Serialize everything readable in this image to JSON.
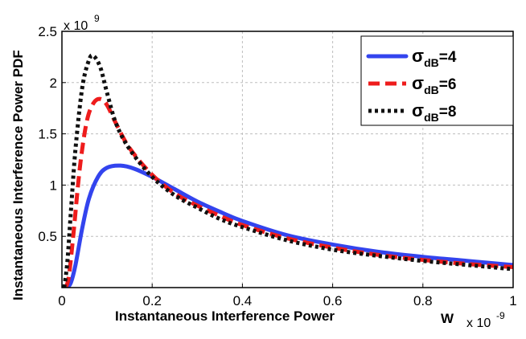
{
  "chart_data": {
    "type": "line",
    "title": "",
    "xlabel": "Instantaneous Interference Power",
    "xunit": "W",
    "ylabel": "Instantaneous Interference Power PDF",
    "x_multiplier": "x 10",
    "x_multiplier_exp": "-9",
    "y_multiplier": "x 10",
    "y_multiplier_exp": "9",
    "xlim": [
      0,
      1
    ],
    "ylim": [
      0,
      2.5
    ],
    "xticks": [
      0,
      0.2,
      0.4,
      0.6,
      0.8,
      1
    ],
    "xtick_labels": [
      "0",
      "0.2",
      "0.4",
      "0.6",
      "0.8",
      "1"
    ],
    "yticks": [
      0.5,
      1,
      1.5,
      2,
      2.5
    ],
    "ytick_labels": [
      "0.5",
      "1",
      "1.5",
      "2",
      "2.5"
    ],
    "grid": true,
    "legend_position": "top-right",
    "series": [
      {
        "name": "σdB=4",
        "legend_symbol": "σ",
        "legend_sub": "dB",
        "legend_value": "=4",
        "color": "#3344ee",
        "dash": "solid",
        "x": [
          0.012,
          0.02,
          0.03,
          0.045,
          0.06,
          0.08,
          0.1,
          0.13,
          0.16,
          0.2,
          0.25,
          0.3,
          0.35,
          0.4,
          0.5,
          0.6,
          0.7,
          0.8,
          0.9,
          1.0
        ],
        "y": [
          0.0,
          0.05,
          0.22,
          0.58,
          0.87,
          1.08,
          1.17,
          1.19,
          1.16,
          1.08,
          0.96,
          0.84,
          0.74,
          0.65,
          0.51,
          0.42,
          0.35,
          0.3,
          0.26,
          0.22
        ]
      },
      {
        "name": "σdB=6",
        "legend_symbol": "σ",
        "legend_sub": "dB",
        "legend_value": "=6",
        "color": "#ee1c1c",
        "dash": "dashed",
        "x": [
          0.008,
          0.015,
          0.025,
          0.04,
          0.055,
          0.07,
          0.085,
          0.1,
          0.12,
          0.15,
          0.2,
          0.25,
          0.3,
          0.35,
          0.4,
          0.5,
          0.6,
          0.7,
          0.8,
          0.9,
          1.0
        ],
        "y": [
          0.0,
          0.1,
          0.5,
          1.18,
          1.62,
          1.8,
          1.84,
          1.78,
          1.6,
          1.36,
          1.1,
          0.92,
          0.8,
          0.7,
          0.61,
          0.48,
          0.39,
          0.32,
          0.27,
          0.23,
          0.2
        ]
      },
      {
        "name": "σdB=8",
        "legend_symbol": "σ",
        "legend_sub": "dB",
        "legend_value": "=8",
        "color": "#111111",
        "dash": "dotted",
        "x": [
          0.005,
          0.012,
          0.02,
          0.03,
          0.045,
          0.06,
          0.07,
          0.085,
          0.1,
          0.12,
          0.15,
          0.2,
          0.25,
          0.3,
          0.35,
          0.4,
          0.5,
          0.6,
          0.7,
          0.8,
          0.9,
          1.0
        ],
        "y": [
          0.0,
          0.25,
          0.75,
          1.35,
          1.95,
          2.22,
          2.26,
          2.15,
          1.9,
          1.6,
          1.35,
          1.08,
          0.9,
          0.78,
          0.67,
          0.59,
          0.46,
          0.37,
          0.31,
          0.26,
          0.22,
          0.18
        ]
      }
    ]
  }
}
